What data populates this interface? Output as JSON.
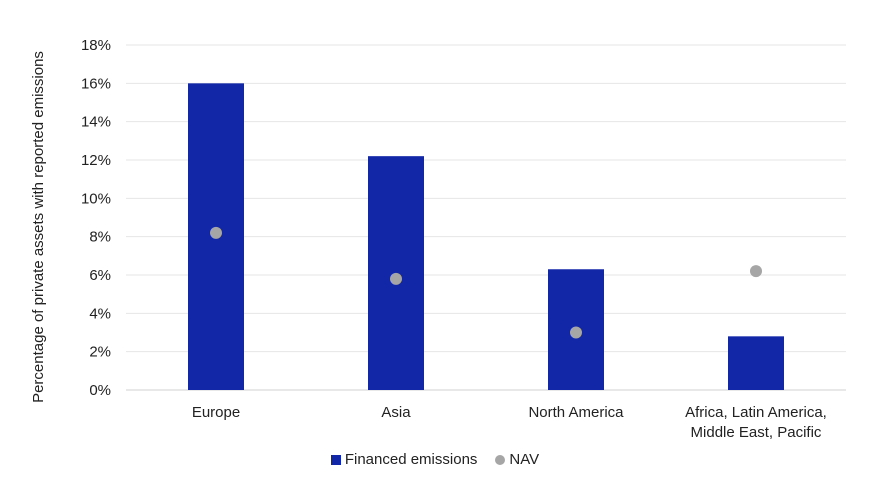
{
  "chart_data": {
    "type": "bar",
    "title": "",
    "xlabel": "",
    "ylabel": "Percentage of private assets with reported emissions",
    "ylim": [
      0,
      18
    ],
    "yticks": [
      "0%",
      "2%",
      "4%",
      "6%",
      "8%",
      "10%",
      "12%",
      "14%",
      "16%",
      "18%"
    ],
    "grid": true,
    "legend_position": "bottom",
    "categories": [
      "Europe",
      "Asia",
      "North America",
      "Africa, Latin America, Middle East, Pacific"
    ],
    "category_lines": [
      [
        "Europe"
      ],
      [
        "Asia"
      ],
      [
        "North America"
      ],
      [
        "Africa, Latin America,",
        "Middle East, Pacific"
      ]
    ],
    "series": [
      {
        "name": "Financed emissions",
        "kind": "bar",
        "color": "#1226a8",
        "values": [
          16.0,
          12.2,
          6.3,
          2.8
        ]
      },
      {
        "name": "NAV",
        "kind": "dot",
        "color": "#a6a6a6",
        "values": [
          8.2,
          5.8,
          3.0,
          6.2
        ]
      }
    ]
  },
  "legend": {
    "items": [
      {
        "label": "Financed emissions",
        "icon": "square-swatch"
      },
      {
        "label": "NAV",
        "icon": "circle-swatch"
      }
    ]
  }
}
